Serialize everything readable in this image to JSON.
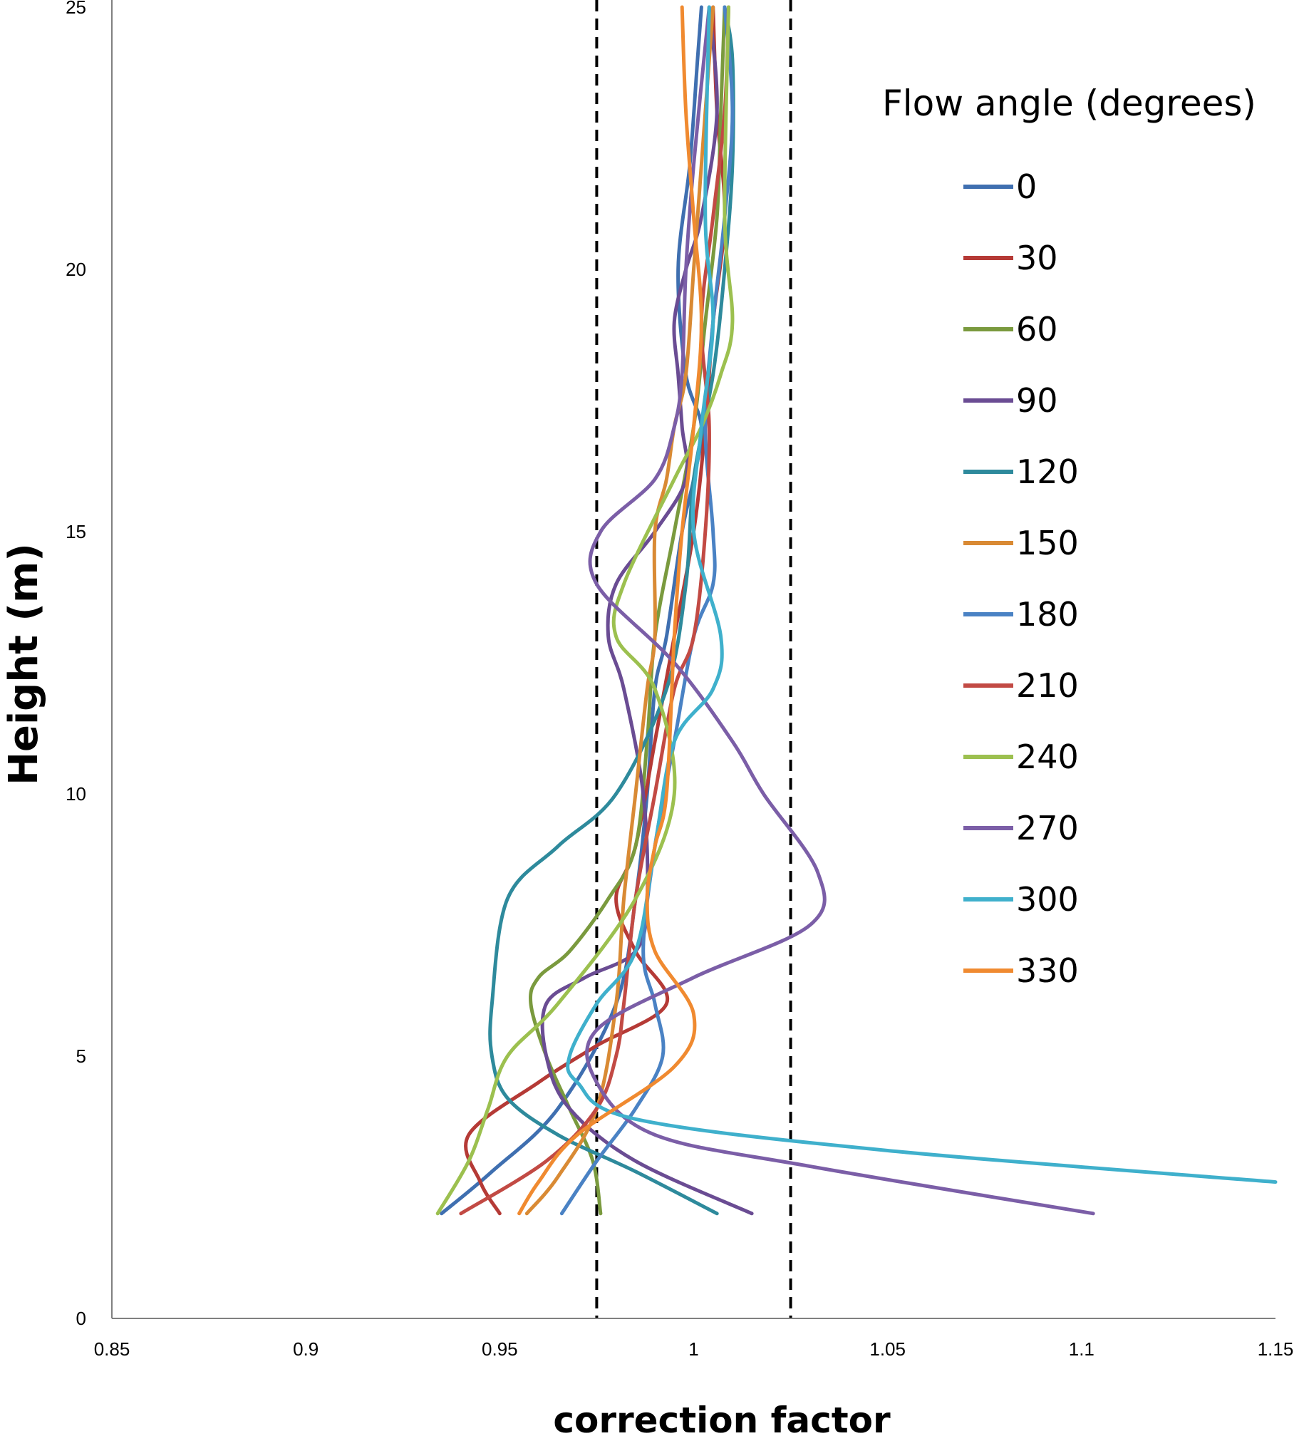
{
  "chart_data": {
    "type": "line",
    "xlabel": "correction factor",
    "ylabel": "Height (m)",
    "xlim": [
      0.85,
      1.15
    ],
    "ylim": [
      0,
      25
    ],
    "xticks": [
      "0.85",
      "0.9",
      "0.95",
      "1",
      "1.05",
      "1.1",
      "1.15"
    ],
    "yticks": [
      "0",
      "5",
      "10",
      "15",
      "20",
      "25"
    ],
    "reference_lines_x": [
      0.975,
      1.025
    ],
    "reference_line_style": "dashed",
    "legend_title": "Flow angle (degrees)",
    "legend_position": "top-right",
    "series": [
      {
        "name": "0",
        "color": "#3f6fb0",
        "x": [
          0.935,
          0.948,
          0.965,
          0.98,
          0.985,
          0.988,
          0.99,
          0.993,
          0.997,
          1.0,
          1.002,
          0.998,
          0.996,
          0.999,
          1.001,
          1.002
        ],
        "y": [
          2,
          2.8,
          4,
          6,
          8,
          10,
          12,
          13,
          15,
          16,
          17,
          18,
          20,
          22,
          24,
          25
        ]
      },
      {
        "name": "30",
        "color": "#b53a36",
        "x": [
          0.95,
          0.945,
          0.942,
          0.96,
          0.975,
          0.993,
          0.985,
          0.98,
          0.985,
          0.99,
          0.995,
          1.0,
          1.003,
          1.005,
          1.008,
          1.006,
          1.005
        ],
        "y": [
          2,
          2.6,
          3.5,
          4.5,
          5.2,
          6,
          7,
          8,
          9,
          11,
          13,
          15,
          17,
          19,
          21,
          23,
          25
        ]
      },
      {
        "name": "60",
        "color": "#7a9a3e",
        "x": [
          0.976,
          0.974,
          0.968,
          0.962,
          0.958,
          0.96,
          0.968,
          0.978,
          0.985,
          0.988,
          0.99,
          0.995,
          1.0,
          1.003,
          1.006,
          1.007,
          1.008
        ],
        "y": [
          2,
          3,
          4,
          5,
          6,
          6.5,
          7,
          8,
          9,
          11,
          13,
          15,
          17,
          19,
          21,
          23,
          25
        ]
      },
      {
        "name": "90",
        "color": "#6a4c93",
        "x": [
          1.015,
          0.985,
          0.968,
          0.962,
          0.962,
          0.972,
          0.985,
          0.988,
          0.987,
          0.982,
          0.978,
          0.98,
          0.99,
          0.998,
          0.997,
          0.996,
          0.995,
          0.998,
          1.002,
          1.006,
          1.004
        ],
        "y": [
          2,
          3,
          4,
          5,
          6,
          6.5,
          7,
          8,
          10,
          12,
          13,
          14,
          15,
          16,
          17,
          18,
          19,
          20,
          21,
          23,
          25
        ]
      },
      {
        "name": "120",
        "color": "#2e8a9c",
        "x": [
          1.006,
          0.985,
          0.965,
          0.952,
          0.948,
          0.948,
          0.952,
          0.965,
          0.98,
          0.993,
          0.998,
          1.0,
          1.005,
          1.008,
          1.01,
          1.01,
          1.008
        ],
        "y": [
          2,
          2.8,
          3.5,
          4.2,
          5,
          6,
          8,
          9,
          10,
          12,
          14,
          16,
          18,
          20,
          22,
          24,
          25
        ]
      },
      {
        "name": "150",
        "color": "#d98a34",
        "x": [
          0.957,
          0.965,
          0.975,
          0.98,
          0.982,
          0.985,
          0.988,
          0.99,
          0.99,
          0.993,
          0.995,
          0.998,
          1.0,
          1.002,
          1.004,
          1.005
        ],
        "y": [
          2,
          2.7,
          4,
          6,
          8,
          10,
          12,
          13,
          15,
          16,
          17,
          18,
          20,
          22,
          24,
          25
        ]
      },
      {
        "name": "180",
        "color": "#4a82c4",
        "x": [
          0.966,
          0.975,
          0.985,
          0.992,
          0.99,
          0.987,
          0.99,
          0.995,
          1.0,
          1.005,
          1.005,
          1.003,
          1.005,
          1.008,
          1.01,
          1.008
        ],
        "y": [
          2,
          3,
          4,
          5,
          6,
          7,
          9,
          11,
          13,
          14,
          15,
          17,
          19,
          21,
          23,
          25
        ]
      },
      {
        "name": "210",
        "color": "#c24a44",
        "x": [
          0.94,
          0.962,
          0.975,
          0.98,
          0.982,
          0.985,
          0.99,
          0.995,
          1.0,
          1.003,
          1.004,
          1.002,
          1.005,
          1.008,
          1.009
        ],
        "y": [
          2,
          3,
          4,
          5,
          6,
          8,
          10,
          12,
          13,
          15,
          17,
          19,
          21,
          23,
          25
        ]
      },
      {
        "name": "240",
        "color": "#9cc04f",
        "x": [
          0.934,
          0.942,
          0.947,
          0.952,
          0.965,
          0.985,
          0.995,
          0.99,
          0.98,
          0.982,
          0.995,
          1.002,
          1.007,
          1.01,
          1.008,
          1.009
        ],
        "y": [
          2,
          3,
          4,
          5,
          6,
          8,
          10,
          12,
          13,
          14,
          16,
          17,
          18,
          19,
          21,
          25
        ]
      },
      {
        "name": "270",
        "color": "#7b5ea7",
        "x": [
          1.103,
          1.03,
          0.99,
          0.975,
          0.975,
          1.0,
          1.03,
          1.032,
          1.018,
          1.01,
          0.995,
          0.975,
          0.976,
          0.99,
          0.995,
          0.997,
          0.998,
          1.0,
          1.004
        ],
        "y": [
          2,
          2.9,
          3.5,
          4.5,
          5.5,
          6.5,
          7.5,
          8.5,
          10,
          11,
          12.5,
          14,
          15,
          16,
          17,
          18,
          20,
          22,
          25
        ]
      },
      {
        "name": "300",
        "color": "#3fb0cc",
        "x": [
          1.15,
          1.05,
          0.985,
          0.97,
          0.968,
          0.975,
          0.985,
          0.99,
          0.995,
          1.005,
          1.007,
          1.0,
          1.002,
          1.005,
          1.003,
          1.004
        ],
        "y": [
          2.6,
          3.2,
          3.8,
          4.5,
          5,
          6,
          7,
          9,
          11,
          12,
          13,
          15,
          17,
          19,
          21,
          25
        ]
      },
      {
        "name": "330",
        "color": "#f08a30",
        "x": [
          0.955,
          0.96,
          0.97,
          0.995,
          1.0,
          0.99,
          0.988,
          0.99,
          0.993,
          0.995,
          0.997,
          1.0,
          1.002,
          1.0,
          0.998,
          0.997
        ],
        "y": [
          2,
          2.6,
          3.5,
          4.8,
          5.8,
          7,
          8,
          9,
          10,
          13,
          15,
          17,
          19,
          21,
          23,
          25
        ]
      }
    ]
  }
}
